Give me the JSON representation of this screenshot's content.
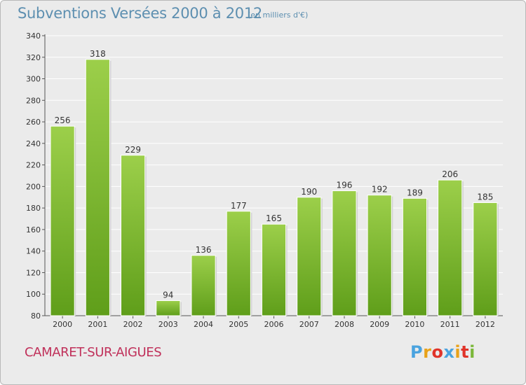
{
  "header": {
    "title": "Subventions Versées 2000 à 2012",
    "subtitle": "(en milliers d'€)"
  },
  "footer": {
    "place": "CAMARET-SUR-AIGUES",
    "logo_text": "Proxiti"
  },
  "colors": {
    "bar_top": "#9ccf4a",
    "bar_bottom": "#5f9e1a",
    "title": "#5d8fb0",
    "place": "#c0305a",
    "background": "#ebebeb",
    "logo_letters": [
      "#4aa3df",
      "#e8a21a",
      "#e0342a",
      "#4aa3df",
      "#e8a21a",
      "#e0342a",
      "#7bb83a"
    ]
  },
  "chart_data": {
    "type": "bar",
    "title": "Subventions Versées 2000 à 2012",
    "subtitle": "(en milliers d'€)",
    "categories": [
      "2000",
      "2001",
      "2002",
      "2003",
      "2004",
      "2005",
      "2006",
      "2007",
      "2008",
      "2009",
      "2010",
      "2011",
      "2012"
    ],
    "values": [
      256,
      318,
      229,
      94,
      136,
      177,
      165,
      190,
      196,
      192,
      189,
      206,
      185
    ],
    "ylim": [
      80,
      340
    ],
    "yticks": [
      80,
      100,
      120,
      140,
      160,
      180,
      200,
      220,
      240,
      260,
      280,
      300,
      320,
      340
    ],
    "grid": true,
    "data_labels": true
  }
}
